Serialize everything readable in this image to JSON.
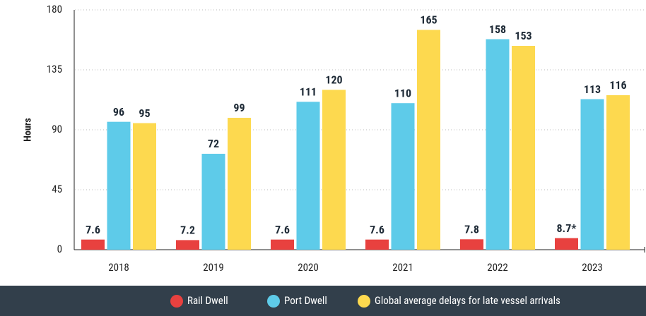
{
  "chart_data": {
    "type": "bar",
    "y_label": "Hours",
    "categories": [
      "2018",
      "2019",
      "2020",
      "2021",
      "2022",
      "2023"
    ],
    "series": [
      {
        "name": "Rail Dwell",
        "color": "#e8413f",
        "values": [
          7.6,
          7.2,
          7.6,
          7.6,
          7.8,
          8.7
        ],
        "value_labels": [
          "7.6",
          "7.2",
          "7.6",
          "7.6",
          "7.8",
          "8.7*"
        ]
      },
      {
        "name": "Port Dwell",
        "color": "#5ecbe9",
        "values": [
          96,
          72,
          111,
          110,
          158,
          113
        ]
      },
      {
        "name": "Global average delays for late vessel arrivals",
        "color": "#fdd94f",
        "values": [
          95,
          99,
          120,
          165,
          153,
          116
        ]
      }
    ],
    "ylim": [
      0,
      180
    ],
    "yticks": [
      0,
      45,
      90,
      135,
      180
    ],
    "grid": true,
    "legend": "bottom"
  }
}
